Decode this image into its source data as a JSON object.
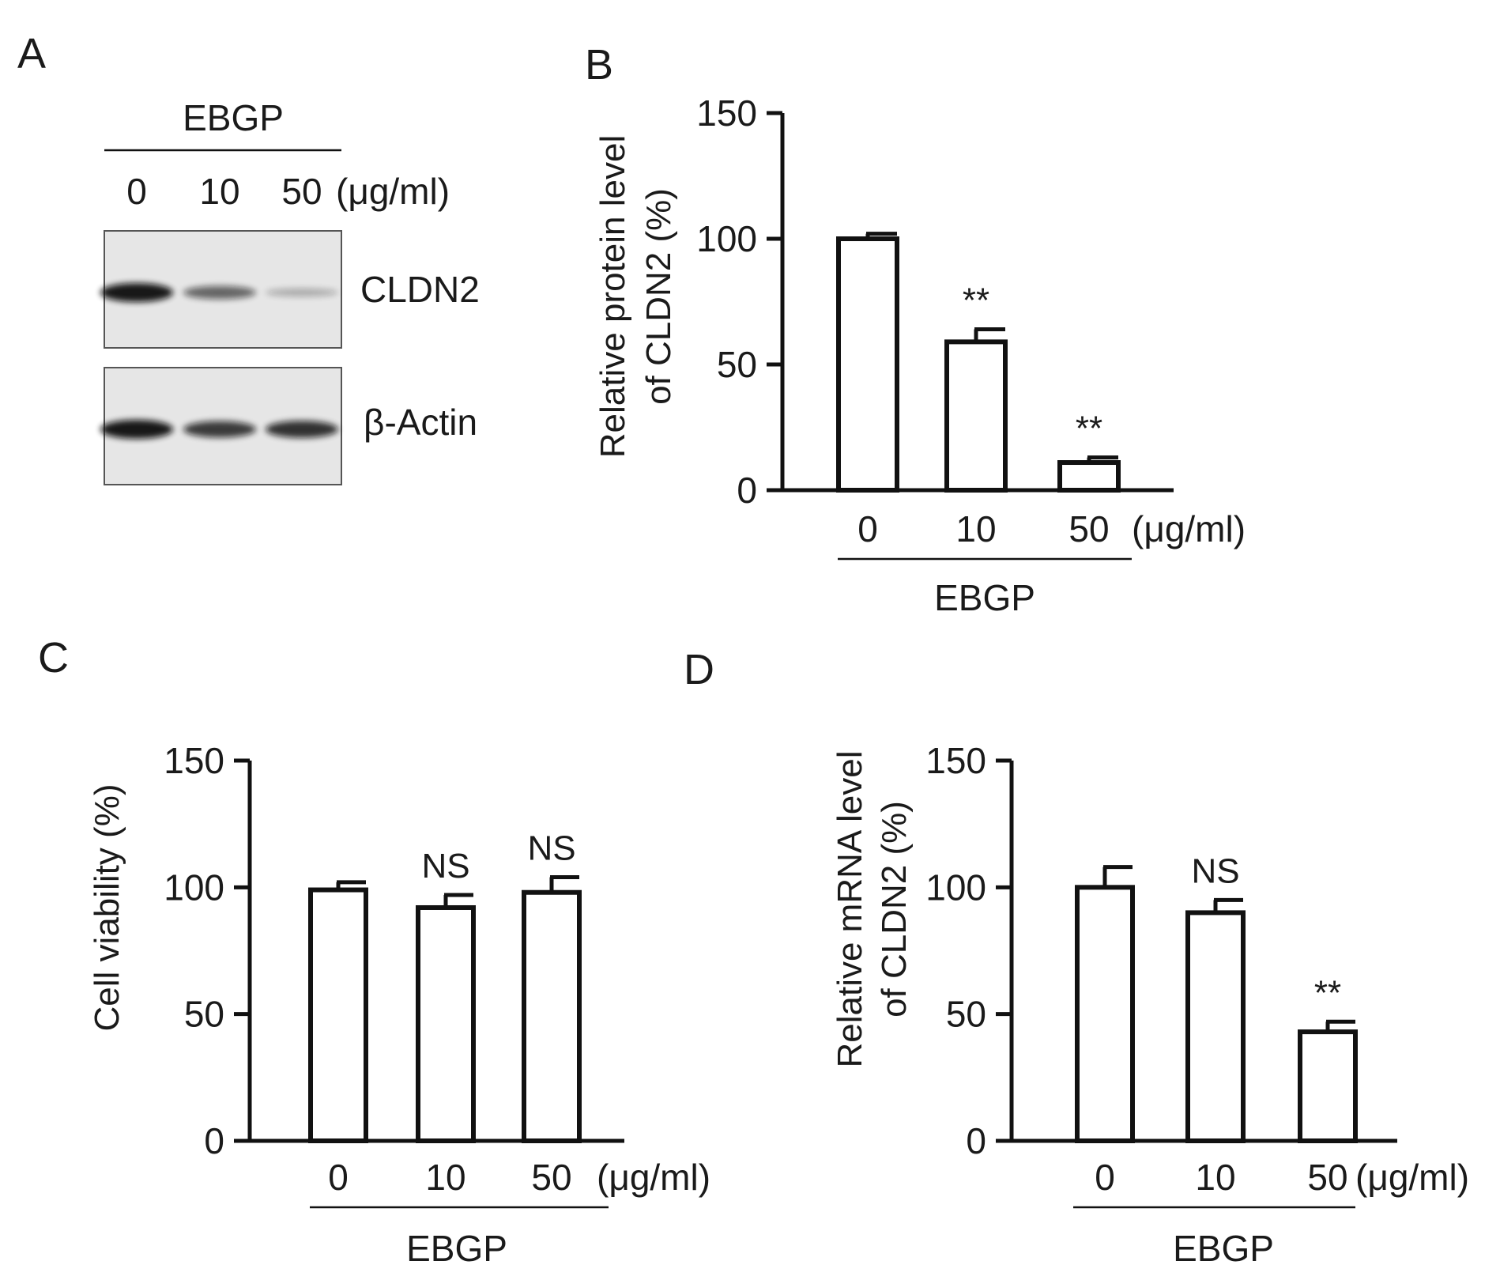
{
  "blot": {
    "panel": "A",
    "treatment": "EBGP",
    "doses": [
      "0",
      "10",
      "50"
    ],
    "unit": "(μg/ml)",
    "bands": [
      "CLDN2",
      "β-Actin"
    ],
    "intensity": {
      "CLDN2": [
        1.0,
        0.55,
        0.15
      ],
      "β-Actin": [
        1.0,
        0.8,
        0.85
      ]
    }
  },
  "chart_data": [
    {
      "panel": "B",
      "type": "bar",
      "categories": [
        "0",
        "10",
        "50"
      ],
      "unit": "(μg/ml)",
      "group_label": "EBGP",
      "ylabel": [
        "Relative protein level",
        "of CLDN2 (%)"
      ],
      "ylim": [
        0,
        150
      ],
      "yticks": [
        "0",
        "50",
        "100",
        "150"
      ],
      "values": [
        100,
        59,
        11
      ],
      "errors": [
        2,
        5,
        2
      ],
      "annotations": [
        "",
        "**",
        "**"
      ]
    },
    {
      "panel": "C",
      "type": "bar",
      "categories": [
        "0",
        "10",
        "50"
      ],
      "unit": "(μg/ml)",
      "group_label": "EBGP",
      "ylabel": [
        "Cell viability (%)"
      ],
      "ylim": [
        0,
        150
      ],
      "yticks": [
        "0",
        "50",
        "100",
        "150"
      ],
      "values": [
        99,
        92,
        98
      ],
      "errors": [
        3,
        5,
        6
      ],
      "annotations": [
        "",
        "NS",
        "NS"
      ]
    },
    {
      "panel": "D",
      "type": "bar",
      "categories": [
        "0",
        "10",
        "50"
      ],
      "unit": "(μg/ml)",
      "group_label": "EBGP",
      "ylabel": [
        "Relative mRNA level",
        "of CLDN2 (%)"
      ],
      "ylim": [
        0,
        150
      ],
      "yticks": [
        "0",
        "50",
        "100",
        "150"
      ],
      "values": [
        100,
        90,
        43
      ],
      "errors": [
        8,
        5,
        4
      ],
      "annotations": [
        "",
        "NS",
        "**"
      ]
    }
  ]
}
